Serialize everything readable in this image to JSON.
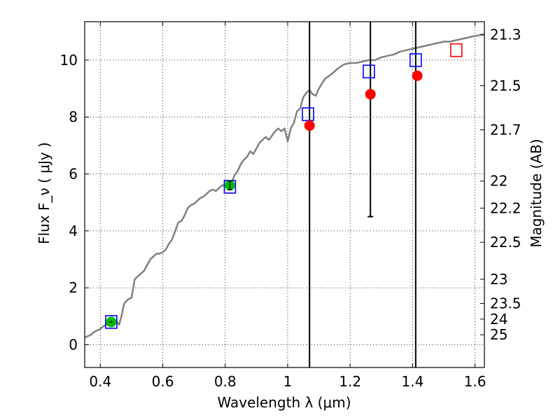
{
  "chart_data": {
    "type": "scatter",
    "xlabel": "Wavelength  λ (μm)",
    "ylabel_left": "Flux  F_ν  ( μJy )",
    "ylabel_right": "Magnitude (AB)",
    "xlim": [
      0.35,
      1.63
    ],
    "ylim": [
      -0.8,
      11.35
    ],
    "x_ticks": [
      0.4,
      0.6,
      0.8,
      1.0,
      1.2,
      1.4,
      1.6
    ],
    "x_tick_labels": [
      "0.4",
      "0.6",
      "0.8",
      "1",
      "1.2",
      "1.4",
      "1.6"
    ],
    "y_ticks": [
      0,
      2,
      4,
      6,
      8,
      10
    ],
    "y_tick_labels": [
      "0",
      "2",
      "4",
      "6",
      "8",
      "10"
    ],
    "right_ticks": [
      {
        "label": "21.3",
        "flux": 10.9
      },
      {
        "label": "21.5",
        "flux": 9.1
      },
      {
        "label": "21.7",
        "flux": 7.55
      },
      {
        "label": "22",
        "flux": 5.75
      },
      {
        "label": "22.2",
        "flux": 4.8
      },
      {
        "label": "22.5",
        "flux": 3.6
      },
      {
        "label": "23",
        "flux": 2.3
      },
      {
        "label": "23.5",
        "flux": 1.45
      },
      {
        "label": "24",
        "flux": 0.9
      },
      {
        "label": "25",
        "flux": 0.35
      }
    ],
    "grid": true,
    "model_spectrum": {
      "color": "#808080",
      "x": [
        0.35,
        0.37,
        0.38,
        0.39,
        0.4,
        0.41,
        0.42,
        0.43,
        0.44,
        0.45,
        0.46,
        0.47,
        0.475,
        0.48,
        0.49,
        0.5,
        0.51,
        0.52,
        0.53,
        0.54,
        0.55,
        0.56,
        0.57,
        0.58,
        0.59,
        0.6,
        0.61,
        0.62,
        0.63,
        0.64,
        0.65,
        0.66,
        0.67,
        0.68,
        0.69,
        0.7,
        0.71,
        0.72,
        0.73,
        0.74,
        0.75,
        0.76,
        0.77,
        0.78,
        0.79,
        0.8,
        0.81,
        0.82,
        0.83,
        0.84,
        0.85,
        0.86,
        0.87,
        0.88,
        0.89,
        0.9,
        0.91,
        0.92,
        0.93,
        0.94,
        0.95,
        0.96,
        0.97,
        0.98,
        0.99,
        1.0,
        1.01,
        1.02,
        1.03,
        1.04,
        1.05,
        1.06,
        1.07,
        1.08,
        1.09,
        1.1,
        1.12,
        1.14,
        1.16,
        1.18,
        1.2,
        1.22,
        1.24,
        1.26,
        1.28,
        1.3,
        1.32,
        1.34,
        1.36,
        1.38,
        1.4,
        1.42,
        1.44,
        1.46,
        1.48,
        1.5,
        1.52,
        1.54,
        1.56,
        1.58,
        1.6,
        1.63
      ],
      "y": [
        0.25,
        0.35,
        0.45,
        0.5,
        0.55,
        0.65,
        0.7,
        0.75,
        0.8,
        0.85,
        0.7,
        1.1,
        1.4,
        1.5,
        1.6,
        1.65,
        2.3,
        2.4,
        2.5,
        2.6,
        2.8,
        3.0,
        3.1,
        3.2,
        3.2,
        3.25,
        3.35,
        3.55,
        3.7,
        4.0,
        4.3,
        4.35,
        4.55,
        4.8,
        4.9,
        4.95,
        5.05,
        5.15,
        5.2,
        5.3,
        5.4,
        5.45,
        5.4,
        5.5,
        5.6,
        5.6,
        5.65,
        5.7,
        5.95,
        6.1,
        6.35,
        6.5,
        6.6,
        6.8,
        6.7,
        6.9,
        7.1,
        7.2,
        7.3,
        7.2,
        7.35,
        7.5,
        7.6,
        7.5,
        7.6,
        7.15,
        7.6,
        7.8,
        8.2,
        8.3,
        8.7,
        8.85,
        8.95,
        8.8,
        8.75,
        9.0,
        9.35,
        9.5,
        9.7,
        9.85,
        9.9,
        9.9,
        9.95,
        10.0,
        10.0,
        10.1,
        10.15,
        10.2,
        10.3,
        10.35,
        10.4,
        10.45,
        10.5,
        10.55,
        10.6,
        10.65,
        10.65,
        10.7,
        10.75,
        10.8,
        10.85,
        10.9
      ]
    },
    "series": [
      {
        "marker": "square",
        "color": "#0000ff",
        "points": [
          {
            "x": 0.435,
            "y": 0.8
          },
          {
            "x": 0.815,
            "y": 5.55
          },
          {
            "x": 1.065,
            "y": 8.1
          },
          {
            "x": 1.26,
            "y": 9.6
          },
          {
            "x": 1.41,
            "y": 10.0
          }
        ]
      },
      {
        "marker": "square",
        "color": "#ff0000",
        "points": [
          {
            "x": 1.54,
            "y": 10.35
          }
        ]
      },
      {
        "marker": "circle",
        "color": "#ff0000",
        "points": [
          {
            "x": 1.07,
            "y": 7.7
          },
          {
            "x": 1.265,
            "y": 8.8
          },
          {
            "x": 1.415,
            "y": 9.45
          }
        ]
      },
      {
        "marker": "circle",
        "color": "#00bb00",
        "points": [
          {
            "x": 0.435,
            "y": 0.8,
            "err_x": 0.006
          },
          {
            "x": 0.815,
            "y": 5.6,
            "err_y": 0.15
          }
        ]
      }
    ],
    "vertical_lines": [
      {
        "x": 1.07,
        "y_top": 11.35,
        "y_bottom": -0.8
      },
      {
        "x": 1.265,
        "y_top": 11.35,
        "y_bottom": 4.5
      },
      {
        "x": 1.41,
        "y_top": 11.35,
        "y_bottom": -0.8
      }
    ]
  }
}
